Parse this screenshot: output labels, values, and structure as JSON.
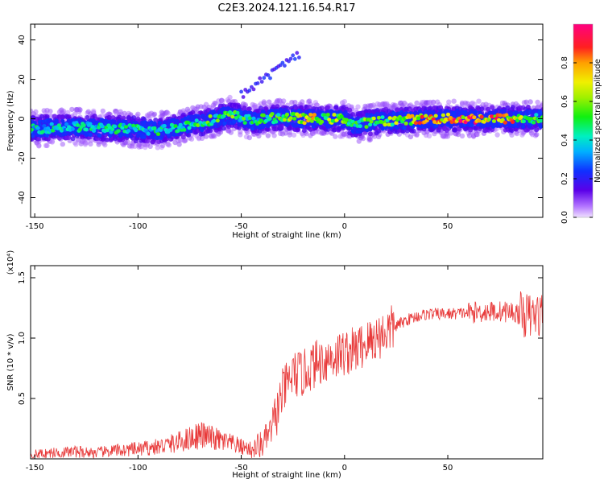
{
  "title": "C2E3.2024.121.16.54.R17",
  "colors": {
    "snr_line": "#e83a3a",
    "axis": "#000000",
    "background": "#ffffff"
  },
  "chart_data": [
    {
      "type": "heatmap",
      "xlabel": "Height of straight line (km)",
      "ylabel": "Frequency (Hz)",
      "xlim": [
        -152,
        96
      ],
      "ylim": [
        -50,
        48
      ],
      "x_ticks": [
        -150,
        -100,
        -50,
        0,
        50
      ],
      "y_ticks": [
        40,
        20,
        0,
        -20,
        -40
      ],
      "grid": false,
      "colorbar": {
        "label": "Normalized spectral amplitude",
        "range": [
          0.0,
          1.0
        ],
        "ticks": [
          "0.0",
          "0.2",
          "0.4",
          "0.6",
          "0.8"
        ],
        "colormap": "rainbow (violet to red/magenta)"
      },
      "ridge": {
        "description": "high amplitude ridge near 0 Hz",
        "x": [
          -150,
          -130,
          -110,
          -90,
          -70,
          -55,
          -45,
          -30,
          -20,
          -10,
          0,
          5,
          10,
          20,
          40,
          60,
          80,
          95
        ],
        "frequency": [
          -5,
          -4,
          -5,
          -6,
          -2,
          2,
          -1,
          1,
          0,
          0,
          0,
          -3,
          -2,
          -1,
          0,
          0,
          0,
          0
        ],
        "amplitude": [
          0.45,
          0.45,
          0.5,
          0.5,
          0.55,
          0.6,
          0.5,
          0.6,
          0.8,
          0.7,
          0.6,
          0.5,
          0.6,
          0.65,
          0.85,
          0.95,
          0.9,
          0.5
        ]
      }
    },
    {
      "type": "line",
      "xlabel": "Height of straight line (km)",
      "ylabel": "SNR (10 * v/v)",
      "y_multiplier_label": "(x10⁴)",
      "xlim": [
        -152,
        96
      ],
      "ylim": [
        0,
        1.6
      ],
      "x_ticks": [
        -150,
        -100,
        -50,
        0,
        50
      ],
      "y_ticks": [
        "0.5",
        "1.0",
        "1.5"
      ],
      "grid": false,
      "series": [
        {
          "x": [
            -150,
            -140,
            -130,
            -120,
            -110,
            -100,
            -90,
            -80,
            -70,
            -60,
            -50,
            -45,
            -40,
            -35,
            -30,
            -25,
            -20,
            -15,
            -10,
            -5,
            0,
            5,
            10,
            15,
            20,
            25,
            30,
            35,
            40,
            50,
            60,
            70,
            80,
            90,
            95
          ],
          "values": [
            0.04,
            0.05,
            0.06,
            0.05,
            0.07,
            0.08,
            0.1,
            0.14,
            0.2,
            0.15,
            0.1,
            0.08,
            0.12,
            0.25,
            0.55,
            0.7,
            0.7,
            0.78,
            0.82,
            0.85,
            0.88,
            0.9,
            0.95,
            1.0,
            1.05,
            1.1,
            1.15,
            1.18,
            1.2,
            1.2,
            1.21,
            1.22,
            1.22,
            1.18,
            1.2
          ]
        }
      ]
    }
  ],
  "ticks": {
    "x": [
      "-150",
      "-100",
      "-50",
      "0",
      "50"
    ],
    "y_top": [
      "40",
      "20",
      "0",
      "-20",
      "-40"
    ],
    "y_bottom": [
      "0.5",
      "1.0",
      "1.5"
    ],
    "cbar": [
      "0.0",
      "0.2",
      "0.4",
      "0.6",
      "0.8"
    ]
  },
  "labels": {
    "top_xlabel": "Height of straight line (km)",
    "top_ylabel": "Frequency (Hz)",
    "bottom_xlabel": "Height of straight line (km)",
    "bottom_ylabel": "SNR (10 * v/v)",
    "bottom_multiplier": "(x10⁴)",
    "cbar_label": "Normalized spectral amplitude"
  }
}
